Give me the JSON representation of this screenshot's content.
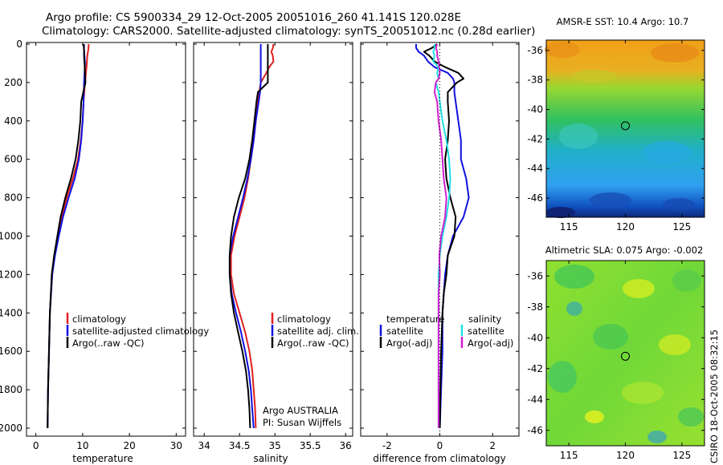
{
  "title": {
    "line1": "Argo profile: CS 5900334_29 12-Oct-2005 20051016_260 41.141S 120.028E",
    "line2": "Climatology: CARS2000. Satellite-adjusted climatology: synTS_20051012.nc (0.28d earlier)"
  },
  "colors": {
    "red": "#e02020",
    "blue": "#1010e0",
    "black": "#000000",
    "cyan": "#20e0e0",
    "magenta": "#d020d0"
  },
  "depth_ticks": [
    "0",
    "200",
    "400",
    "600",
    "800",
    "1000",
    "1200",
    "1400",
    "1600",
    "1800",
    "2000"
  ],
  "chart_data": [
    {
      "type": "line",
      "id": "temperature",
      "xlabel": "temperature",
      "xlim": [
        -2,
        32
      ],
      "ylim": [
        0,
        2050
      ],
      "y_reversed": true,
      "xticks": [
        "0",
        "10",
        "20",
        "30"
      ],
      "depth": [
        0,
        30,
        60,
        100,
        150,
        200,
        300,
        400,
        500,
        600,
        700,
        800,
        900,
        1000,
        1100,
        1200,
        1400,
        1600,
        1800,
        2000
      ],
      "series": [
        {
          "name": "climatology",
          "color": "red",
          "values": [
            11.3,
            11.2,
            11.0,
            10.9,
            10.7,
            10.5,
            10.2,
            10.0,
            9.6,
            9.0,
            7.9,
            6.6,
            5.5,
            4.8,
            4.0,
            3.5,
            3.0,
            2.8,
            2.6,
            2.5
          ]
        },
        {
          "name": "satellite-adjusted climatology",
          "color": "blue",
          "values": [
            10.3,
            10.3,
            10.4,
            10.5,
            10.4,
            10.3,
            10.2,
            10.0,
            9.7,
            9.2,
            8.3,
            7.0,
            5.8,
            4.9,
            4.1,
            3.5,
            3.0,
            2.8,
            2.6,
            2.5
          ]
        },
        {
          "name": "Argo(..raw -QC)",
          "color": "black",
          "values": [
            10.2,
            10.3,
            10.3,
            10.4,
            10.5,
            10.6,
            9.7,
            9.5,
            9.1,
            8.5,
            7.5,
            6.3,
            5.3,
            4.6,
            3.9,
            3.4,
            3.0,
            2.8,
            2.6,
            2.5
          ]
        }
      ],
      "legend": [
        "climatology",
        "satellite-adjusted climatology",
        "Argo(..raw -QC)"
      ]
    },
    {
      "type": "line",
      "id": "salinity",
      "xlabel": "salinity",
      "xlim": [
        33.85,
        36.1
      ],
      "ylim": [
        0,
        2050
      ],
      "y_reversed": true,
      "xticks": [
        "34",
        "34.5",
        "35",
        "35.5",
        "36"
      ],
      "depth": [
        0,
        20,
        40,
        60,
        90,
        120,
        150,
        200,
        250,
        300,
        400,
        500,
        600,
        700,
        800,
        900,
        1000,
        1100,
        1200,
        1300,
        1400,
        1500,
        1600,
        1700,
        1800,
        1900,
        2000
      ],
      "series": [
        {
          "name": "climatology",
          "color": "red",
          "values": [
            34.98,
            34.97,
            34.95,
            34.97,
            34.98,
            34.92,
            34.88,
            34.8,
            34.78,
            34.76,
            34.73,
            34.7,
            34.66,
            34.62,
            34.57,
            34.5,
            34.43,
            34.38,
            34.38,
            34.42,
            34.5,
            34.58,
            34.64,
            34.68,
            34.7,
            34.72,
            34.73
          ]
        },
        {
          "name": "satellite adj. clim.",
          "color": "blue",
          "values": [
            34.8,
            34.8,
            34.8,
            34.8,
            34.8,
            34.8,
            34.8,
            34.8,
            34.79,
            34.77,
            34.73,
            34.7,
            34.66,
            34.61,
            34.55,
            34.48,
            34.41,
            34.36,
            34.36,
            34.39,
            34.45,
            34.52,
            34.58,
            34.63,
            34.66,
            34.68,
            34.7
          ]
        },
        {
          "name": "Argo(..raw -QC)",
          "color": "black",
          "values": [
            34.9,
            34.9,
            34.9,
            34.9,
            34.9,
            34.9,
            34.9,
            34.9,
            34.76,
            34.74,
            34.71,
            34.68,
            34.64,
            34.58,
            34.49,
            34.42,
            34.38,
            34.36,
            34.36,
            34.38,
            34.42,
            34.48,
            34.54,
            34.59,
            34.62,
            34.64,
            34.65
          ]
        }
      ],
      "legend": [
        "climatology",
        "satellite adj. clim.",
        "Argo(..raw -QC)"
      ],
      "annotation": [
        "Argo AUSTRALIA",
        "PI: Susan Wijffels"
      ]
    },
    {
      "type": "line",
      "id": "difference",
      "xlabel": "difference from climatology",
      "xlim": [
        -3,
        3
      ],
      "ylim": [
        0,
        2050
      ],
      "y_reversed": true,
      "xticks": [
        "-2",
        "0",
        "2"
      ],
      "depth": [
        0,
        20,
        40,
        60,
        90,
        120,
        150,
        180,
        200,
        250,
        300,
        400,
        500,
        600,
        700,
        800,
        900,
        1000,
        1100,
        1200,
        1300,
        1400,
        1600,
        1800,
        2000
      ],
      "series": [
        {
          "name": "temperature satellite",
          "color": "blue",
          "values": [
            -0.9,
            -0.9,
            -0.8,
            -0.6,
            -0.45,
            -0.2,
            0.3,
            0.5,
            0.55,
            0.55,
            0.6,
            0.7,
            0.8,
            0.8,
            1.0,
            1.1,
            0.9,
            0.5,
            0.3,
            0.2,
            0.15,
            0.1,
            0.1,
            0.05,
            0.0
          ]
        },
        {
          "name": "temperature Argo(-adj)",
          "color": "black",
          "values": [
            -0.1,
            -0.3,
            -0.6,
            -0.4,
            -0.2,
            0.2,
            0.7,
            0.9,
            0.65,
            0.3,
            0.3,
            0.35,
            0.3,
            0.2,
            0.25,
            0.4,
            0.6,
            0.55,
            0.3,
            0.25,
            0.15,
            0.1,
            0.05,
            0.02,
            0.0
          ]
        },
        {
          "name": "salinity satellite",
          "color": "cyan",
          "values": [
            -0.2,
            -0.2,
            -0.25,
            -0.2,
            -0.25,
            -0.05,
            -0.1,
            -0.05,
            -0.15,
            -0.05,
            0.0,
            0.1,
            0.25,
            0.35,
            0.4,
            0.35,
            0.25,
            0.1,
            0.0,
            -0.05,
            -0.05,
            -0.05,
            -0.05,
            -0.05,
            -0.05
          ]
        },
        {
          "name": "salinity Argo(-adj)",
          "color": "magenta",
          "values": [
            -0.1,
            -0.15,
            -0.1,
            -0.1,
            -0.05,
            -0.02,
            0.0,
            -0.05,
            -0.15,
            -0.2,
            -0.1,
            -0.05,
            0.05,
            0.1,
            0.15,
            0.25,
            0.2,
            0.05,
            -0.02,
            0.0,
            -0.05,
            -0.05,
            -0.05,
            -0.05,
            -0.05
          ]
        }
      ],
      "legend": {
        "temperature_heading": "temperature",
        "salinity_heading": "salinity",
        "temperature": [
          "satellite",
          "Argo(-adj)"
        ],
        "salinity": [
          "satellite",
          "Argo(-adj)"
        ]
      }
    },
    {
      "type": "heatmap",
      "id": "sst-map",
      "title": "AMSR-E SST: 10.4 Argo: 10.7",
      "xlim": [
        113,
        127
      ],
      "ylim": [
        -47.3,
        -35.3
      ],
      "xticks": [
        "115",
        "120",
        "125"
      ],
      "yticks": [
        "-36",
        "-38",
        "-40",
        "-42",
        "-44",
        "-46"
      ],
      "marker": {
        "lon": 120.0,
        "lat": -41.1
      },
      "color_bands_north_to_south": [
        "#f0a018",
        "#e8b020",
        "#98d830",
        "#30c060",
        "#20b0c8",
        "#30a0f0",
        "#1050c0",
        "#102878"
      ]
    },
    {
      "type": "heatmap",
      "id": "sla-map",
      "title": "Altimetric SLA: 0.075 Argo: -0.002",
      "xlim": [
        113,
        127
      ],
      "ylim": [
        -47.0,
        -35.0
      ],
      "xticks": [
        "115",
        "120",
        "125"
      ],
      "yticks": [
        "-36",
        "-38",
        "-40",
        "-42",
        "-44",
        "-46"
      ],
      "marker": {
        "lon": 120.0,
        "lat": -41.2
      },
      "base_colors": [
        "#98e030",
        "#60d040",
        "#30c060",
        "#e0f020",
        "#40b0a0"
      ]
    }
  ],
  "credit": "CSIRO 18-Oct-2005 08:32:15"
}
